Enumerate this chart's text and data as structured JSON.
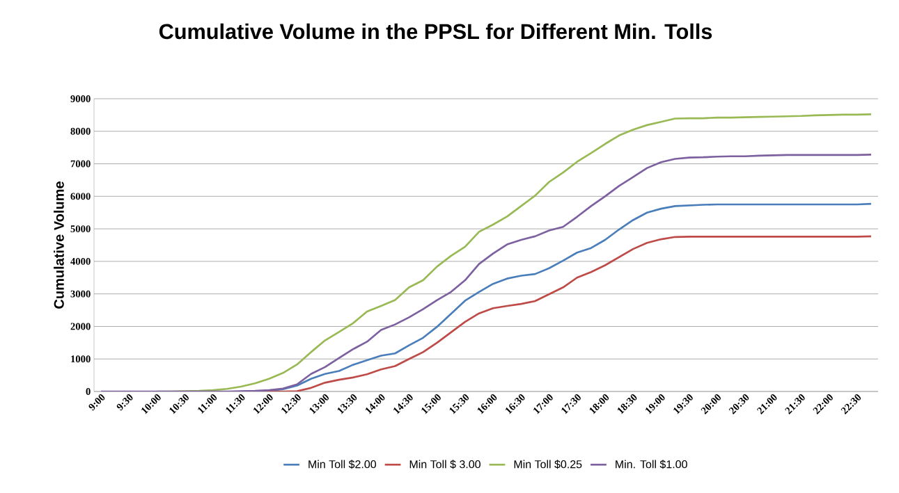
{
  "chart_data": {
    "type": "line",
    "title": "Cumulative Volume in the PPSL for Different Min. Tolls",
    "ylabel": "Cumulative Volume",
    "categories": [
      "9:00",
      null,
      "9:30",
      null,
      "10:00",
      null,
      "10:30",
      null,
      "11:00",
      null,
      "11:30",
      null,
      "12:00",
      null,
      "12:30",
      null,
      "13:00",
      null,
      "13:30",
      null,
      "14:00",
      null,
      "14:30",
      null,
      "15:00",
      null,
      "15:30",
      null,
      "16:00",
      null,
      "16:30",
      null,
      "17:00",
      null,
      "17:30",
      null,
      "18:00",
      null,
      "18:30",
      null,
      "19:00",
      null,
      "19:30",
      null,
      "20:00",
      null,
      "20:30",
      null,
      "21:00",
      null,
      "21:30",
      null,
      "22:00",
      null,
      "22:30",
      null
    ],
    "series": [
      {
        "name": "Min Toll $2.00",
        "color": "#4a7ebb",
        "values": [
          null,
          null,
          null,
          null,
          null,
          null,
          null,
          null,
          null,
          null,
          0,
          0,
          20,
          70,
          180,
          390,
          540,
          630,
          820,
          960,
          1100,
          1170,
          1420,
          1650,
          1990,
          2390,
          2790,
          3060,
          3310,
          3470,
          3560,
          3610,
          3790,
          4020,
          4270,
          4410,
          4660,
          4980,
          5270,
          5500,
          5620,
          5700,
          5720,
          5740,
          5750,
          5750,
          5750,
          5750,
          5750,
          5750,
          5750,
          5750,
          5750,
          5750,
          5750,
          5770
        ]
      },
      {
        "name": "Min Toll $ 3.00",
        "color": "#be4b48",
        "values": [
          null,
          null,
          null,
          null,
          null,
          null,
          null,
          null,
          null,
          null,
          null,
          0,
          0,
          0,
          10,
          110,
          270,
          360,
          430,
          530,
          680,
          780,
          1000,
          1210,
          1500,
          1820,
          2140,
          2400,
          2560,
          2630,
          2690,
          2780,
          2990,
          3200,
          3500,
          3670,
          3880,
          4130,
          4380,
          4570,
          4680,
          4750,
          4760,
          4760,
          4760,
          4760,
          4760,
          4760,
          4760,
          4760,
          4760,
          4760,
          4760,
          4760,
          4760,
          4770
        ]
      },
      {
        "name": "Min Toll $0.25",
        "color": "#98b954",
        "values": [
          null,
          null,
          null,
          null,
          0,
          0,
          10,
          20,
          40,
          80,
          150,
          250,
          390,
          570,
          830,
          1210,
          1570,
          1830,
          2100,
          2460,
          2630,
          2810,
          3200,
          3420,
          3840,
          4170,
          4450,
          4910,
          5130,
          5380,
          5700,
          6020,
          6440,
          6730,
          7060,
          7330,
          7610,
          7870,
          8050,
          8190,
          8290,
          8390,
          8400,
          8400,
          8420,
          8420,
          8430,
          8440,
          8450,
          8460,
          8470,
          8490,
          8500,
          8510,
          8510,
          8520
        ]
      },
      {
        "name": "Min. Toll $1.00",
        "color": "#7d60a0",
        "values": [
          0,
          0,
          0,
          0,
          0,
          0,
          0,
          0,
          0,
          0,
          10,
          20,
          40,
          90,
          220,
          540,
          750,
          1030,
          1300,
          1530,
          1890,
          2060,
          2280,
          2530,
          2810,
          3060,
          3420,
          3920,
          4240,
          4520,
          4660,
          4770,
          4950,
          5060,
          5370,
          5700,
          6000,
          6320,
          6590,
          6870,
          7050,
          7150,
          7190,
          7200,
          7220,
          7230,
          7230,
          7250,
          7260,
          7270,
          7270,
          7270,
          7270,
          7270,
          7270,
          7280
        ]
      }
    ],
    "ylim": [
      0,
      9000
    ],
    "yticks": [
      0,
      1000,
      2000,
      3000,
      4000,
      5000,
      6000,
      7000,
      8000,
      9000
    ],
    "grid": "y",
    "legend": "bottom",
    "marker": "none",
    "line_style": "solid"
  }
}
